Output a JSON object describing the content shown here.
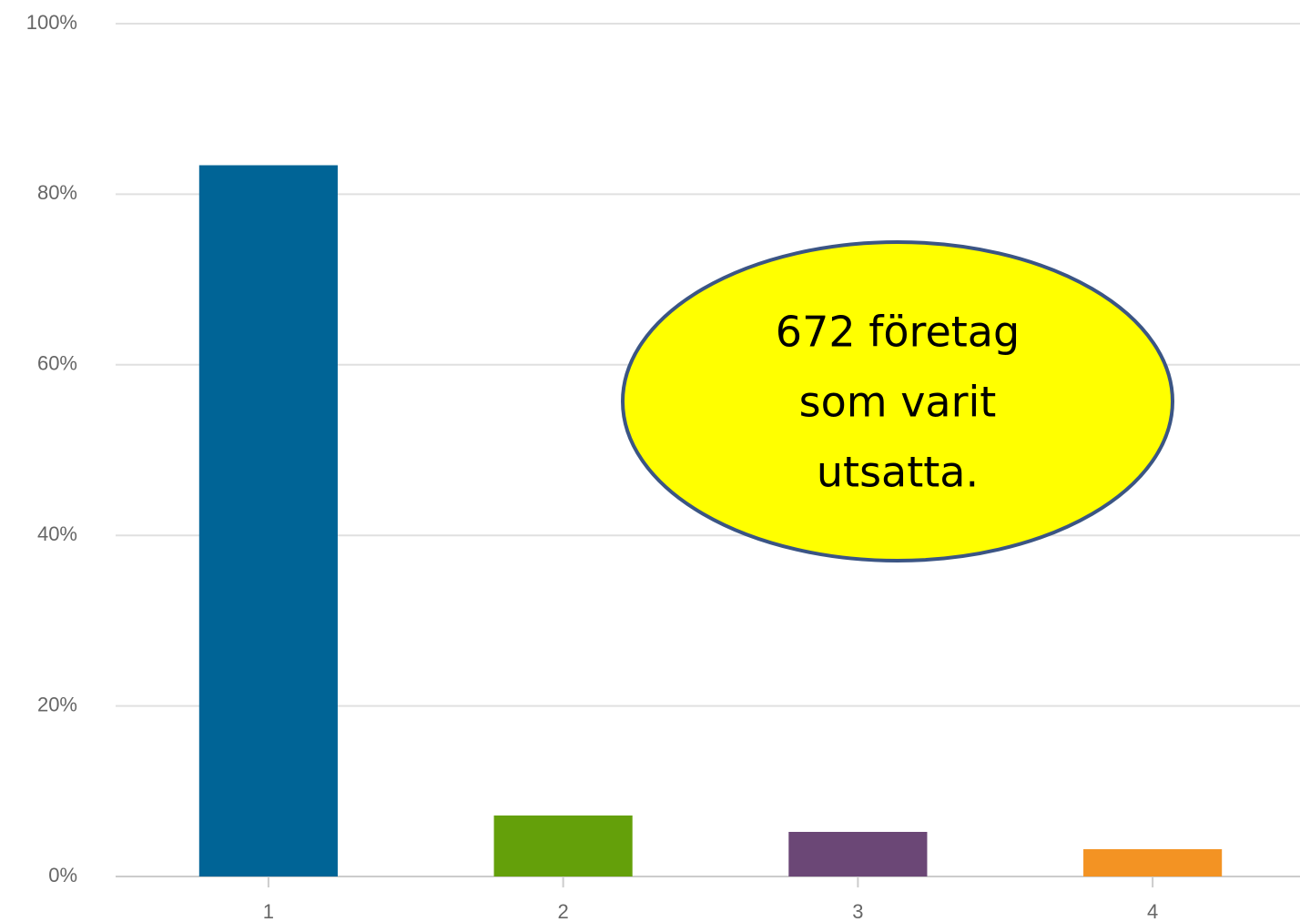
{
  "chart_data": {
    "type": "bar",
    "categories": [
      "1",
      "2",
      "3",
      "4"
    ],
    "values": [
      83.4,
      7.15,
      5.23,
      3.2
    ],
    "colors": [
      "#006496",
      "#64a00a",
      "#6b4776",
      "#f39323"
    ],
    "ylim": [
      0,
      100
    ],
    "yticks": [
      {
        "value": 0,
        "label": "0%"
      },
      {
        "value": 20,
        "label": "20%"
      },
      {
        "value": 40,
        "label": "40%"
      },
      {
        "value": 60,
        "label": "60%"
      },
      {
        "value": 80,
        "label": "80%"
      },
      {
        "value": 100,
        "label": "100%"
      }
    ],
    "grid": true,
    "annotation": [
      "672 företag",
      "som varit",
      "utsatta."
    ]
  }
}
